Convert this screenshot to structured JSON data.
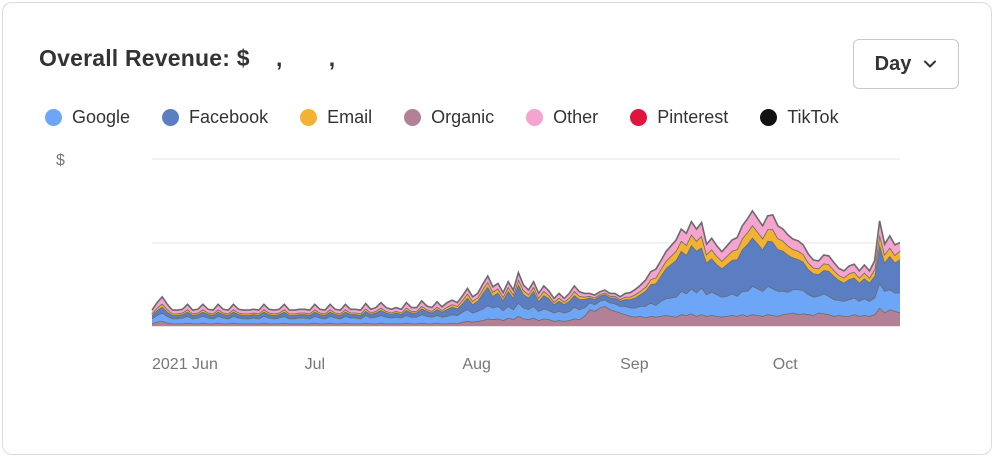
{
  "header": {
    "title": "Overall Revenue: $    ,       ,",
    "range_selector": {
      "selected": "Day"
    }
  },
  "colors": {
    "Google": "#6ea6f7",
    "Facebook": "#5b7ec2",
    "Email": "#f2b233",
    "Organic": "#b38196",
    "Other": "#f5a3cf",
    "Pinterest": "#e0143c",
    "TikTok": "#111111"
  },
  "chart_data": {
    "type": "area",
    "stacked": true,
    "title": "Overall Revenue",
    "ylabel": "$",
    "yticks": [
      "$",
      "",
      ""
    ],
    "x_tick_labels": [
      "2021 Jun",
      "Jul",
      "Aug",
      "Sep",
      "Oct"
    ],
    "x_tick_index": [
      0,
      30,
      61,
      92,
      122
    ],
    "legend": [
      "Google",
      "Facebook",
      "Email",
      "Organic",
      "Other",
      "Pinterest",
      "TikTok"
    ],
    "legend_position": "top-left",
    "grid": true,
    "series": [
      {
        "name": "Organic",
        "values": [
          3,
          5,
          6,
          4,
          3,
          3,
          3,
          4,
          3,
          3,
          4,
          3,
          3,
          4,
          3,
          3,
          4,
          3,
          3,
          3,
          3,
          3,
          4,
          3,
          3,
          3,
          4,
          3,
          3,
          3,
          3,
          3,
          4,
          3,
          3,
          4,
          3,
          3,
          4,
          3,
          3,
          3,
          4,
          3,
          3,
          4,
          3,
          3,
          3,
          3,
          4,
          3,
          3,
          4,
          3,
          3,
          4,
          3,
          3,
          4,
          3,
          5,
          6,
          5,
          6,
          7,
          9,
          8,
          9,
          7,
          10,
          8,
          12,
          9,
          8,
          10,
          7,
          9,
          8,
          6,
          7,
          6,
          7,
          9,
          8,
          12,
          20,
          18,
          22,
          24,
          20,
          18,
          16,
          14,
          12,
          11,
          12,
          10,
          12,
          11,
          12,
          13,
          12,
          11,
          14,
          13,
          15,
          12,
          14,
          12,
          13,
          12,
          11,
          12,
          13,
          12,
          14,
          12,
          14,
          13,
          12,
          14,
          13,
          12,
          14,
          15,
          16,
          14,
          15,
          14,
          13,
          16,
          15,
          14,
          12,
          13,
          12,
          12,
          14,
          12,
          13,
          12,
          14,
          22,
          16,
          20,
          18,
          16
        ]
      },
      {
        "name": "Google",
        "values": [
          6,
          8,
          10,
          8,
          6,
          6,
          7,
          8,
          6,
          7,
          8,
          7,
          6,
          8,
          7,
          6,
          8,
          7,
          6,
          6,
          7,
          6,
          8,
          7,
          6,
          7,
          8,
          6,
          6,
          7,
          7,
          6,
          8,
          7,
          6,
          8,
          7,
          6,
          8,
          7,
          7,
          6,
          9,
          7,
          8,
          9,
          8,
          7,
          8,
          7,
          9,
          8,
          8,
          10,
          9,
          8,
          9,
          8,
          9,
          10,
          10,
          12,
          14,
          11,
          12,
          14,
          16,
          14,
          15,
          12,
          14,
          12,
          16,
          13,
          12,
          14,
          11,
          12,
          11,
          10,
          11,
          10,
          11,
          14,
          12,
          10,
          8,
          8,
          8,
          8,
          8,
          9,
          8,
          10,
          10,
          11,
          12,
          14,
          16,
          14,
          18,
          20,
          22,
          24,
          28,
          26,
          30,
          28,
          32,
          26,
          28,
          26,
          24,
          24,
          26,
          24,
          28,
          30,
          34,
          32,
          30,
          34,
          32,
          30,
          28,
          26,
          28,
          30,
          28,
          24,
          22,
          20,
          24,
          22,
          20,
          18,
          18,
          20,
          20,
          18,
          20,
          18,
          20,
          30,
          26,
          24,
          22,
          24
        ]
      },
      {
        "name": "Facebook",
        "values": [
          4,
          6,
          7,
          5,
          4,
          4,
          4,
          5,
          4,
          4,
          5,
          4,
          4,
          5,
          4,
          4,
          5,
          4,
          4,
          4,
          4,
          4,
          5,
          4,
          4,
          4,
          5,
          4,
          4,
          4,
          4,
          4,
          5,
          4,
          4,
          5,
          4,
          4,
          5,
          4,
          4,
          4,
          5,
          4,
          5,
          6,
          5,
          4,
          5,
          4,
          6,
          5,
          5,
          7,
          6,
          5,
          7,
          6,
          8,
          9,
          8,
          10,
          14,
          10,
          12,
          18,
          22,
          14,
          16,
          12,
          18,
          14,
          22,
          16,
          14,
          18,
          12,
          16,
          14,
          10,
          12,
          10,
          12,
          14,
          12,
          10,
          6,
          6,
          6,
          6,
          6,
          7,
          6,
          8,
          10,
          12,
          14,
          18,
          22,
          26,
          30,
          36,
          40,
          44,
          48,
          46,
          52,
          50,
          48,
          38,
          40,
          36,
          34,
          38,
          40,
          44,
          50,
          56,
          58,
          54,
          50,
          54,
          56,
          50,
          48,
          44,
          38,
          36,
          34,
          30,
          28,
          26,
          28,
          30,
          28,
          24,
          22,
          24,
          24,
          22,
          24,
          22,
          26,
          46,
          34,
          40,
          36,
          40
        ]
      },
      {
        "name": "Email",
        "values": [
          2,
          3,
          4,
          3,
          2,
          2,
          2,
          3,
          2,
          2,
          3,
          2,
          2,
          3,
          2,
          2,
          3,
          2,
          2,
          2,
          2,
          2,
          3,
          2,
          2,
          2,
          3,
          2,
          2,
          2,
          2,
          2,
          3,
          2,
          2,
          3,
          2,
          2,
          3,
          2,
          2,
          2,
          3,
          2,
          2,
          3,
          2,
          2,
          2,
          2,
          3,
          2,
          2,
          3,
          2,
          2,
          3,
          2,
          3,
          3,
          3,
          4,
          5,
          4,
          4,
          5,
          6,
          5,
          5,
          4,
          5,
          4,
          6,
          5,
          4,
          5,
          4,
          5,
          4,
          3,
          4,
          3,
          4,
          5,
          4,
          3,
          2,
          2,
          2,
          2,
          2,
          2,
          2,
          3,
          3,
          4,
          4,
          5,
          6,
          7,
          8,
          9,
          10,
          11,
          12,
          12,
          13,
          12,
          14,
          10,
          11,
          10,
          9,
          10,
          11,
          12,
          13,
          14,
          15,
          14,
          13,
          14,
          15,
          13,
          12,
          11,
          10,
          10,
          9,
          8,
          7,
          7,
          8,
          8,
          7,
          6,
          6,
          7,
          7,
          6,
          7,
          6,
          8,
          12,
          10,
          10,
          9,
          10
        ]
      },
      {
        "name": "Other",
        "values": [
          4,
          6,
          8,
          6,
          4,
          4,
          4,
          6,
          4,
          4,
          6,
          4,
          4,
          6,
          4,
          4,
          6,
          4,
          4,
          4,
          4,
          4,
          6,
          4,
          4,
          4,
          6,
          4,
          4,
          4,
          4,
          4,
          6,
          4,
          4,
          6,
          4,
          4,
          6,
          4,
          4,
          4,
          6,
          4,
          4,
          6,
          4,
          4,
          4,
          4,
          6,
          4,
          4,
          6,
          4,
          4,
          6,
          4,
          5,
          5,
          4,
          5,
          6,
          5,
          5,
          6,
          7,
          6,
          6,
          5,
          6,
          5,
          8,
          6,
          5,
          6,
          5,
          6,
          5,
          4,
          5,
          4,
          5,
          6,
          5,
          4,
          3,
          3,
          3,
          3,
          3,
          3,
          3,
          4,
          5,
          6,
          7,
          8,
          9,
          10,
          10,
          11,
          12,
          13,
          14,
          14,
          15,
          14,
          16,
          12,
          13,
          12,
          11,
          12,
          13,
          14,
          15,
          16,
          17,
          16,
          15,
          16,
          17,
          15,
          14,
          13,
          12,
          12,
          11,
          10,
          9,
          9,
          10,
          10,
          9,
          8,
          8,
          9,
          9,
          8,
          9,
          8,
          10,
          16,
          12,
          14,
          12,
          10
        ]
      }
    ]
  }
}
